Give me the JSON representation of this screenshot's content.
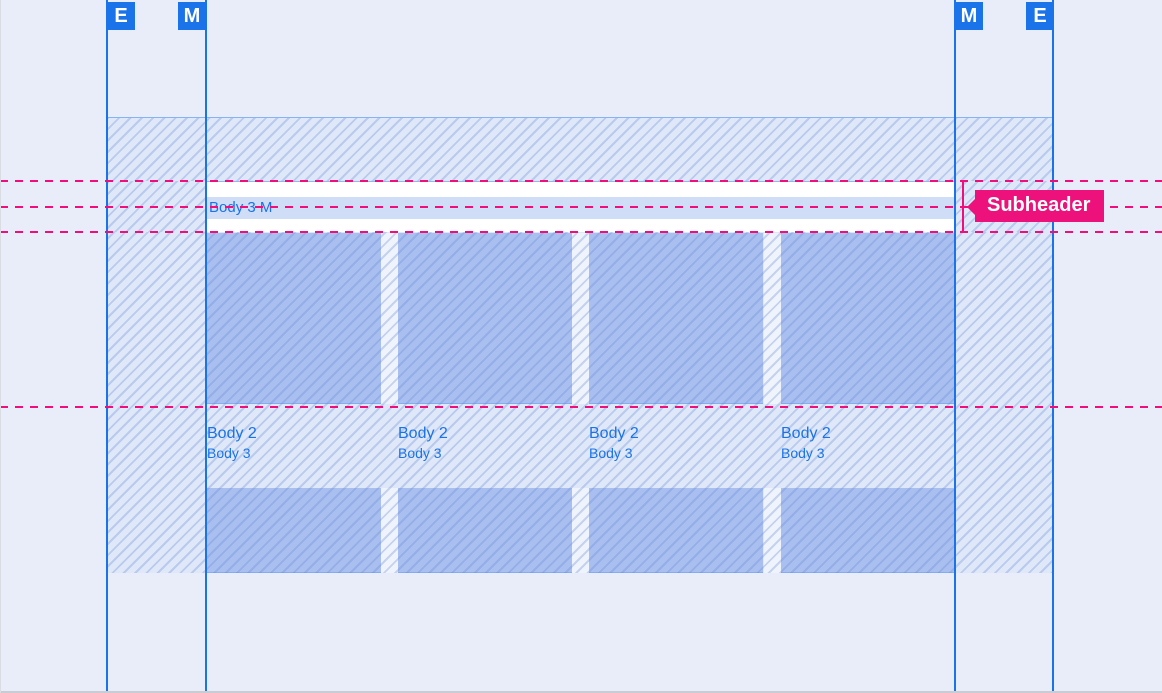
{
  "markers": {
    "left_outer": "E",
    "left_inner": "M",
    "right_inner": "M",
    "right_outer": "E"
  },
  "subheader": {
    "bar_label": "Body 3 M",
    "annotation_label": "Subheader"
  },
  "grid": {
    "columns": [
      {
        "title": "Body 2",
        "subtitle": "Body 3"
      },
      {
        "title": "Body 2",
        "subtitle": "Body 3"
      },
      {
        "title": "Body 2",
        "subtitle": "Body 3"
      },
      {
        "title": "Body 2",
        "subtitle": "Body 3"
      }
    ]
  },
  "colors": {
    "background": "#E8EDF9",
    "band_fill": "#DFE8F8",
    "card_fill": "#A9BFEF",
    "keyline_blue": "#1A73E8",
    "text_blue": "#1A73E8",
    "redline_pink": "#F20D7B",
    "annotation_pink": "#ED127B",
    "highlight_row": "#CFDDF7"
  }
}
